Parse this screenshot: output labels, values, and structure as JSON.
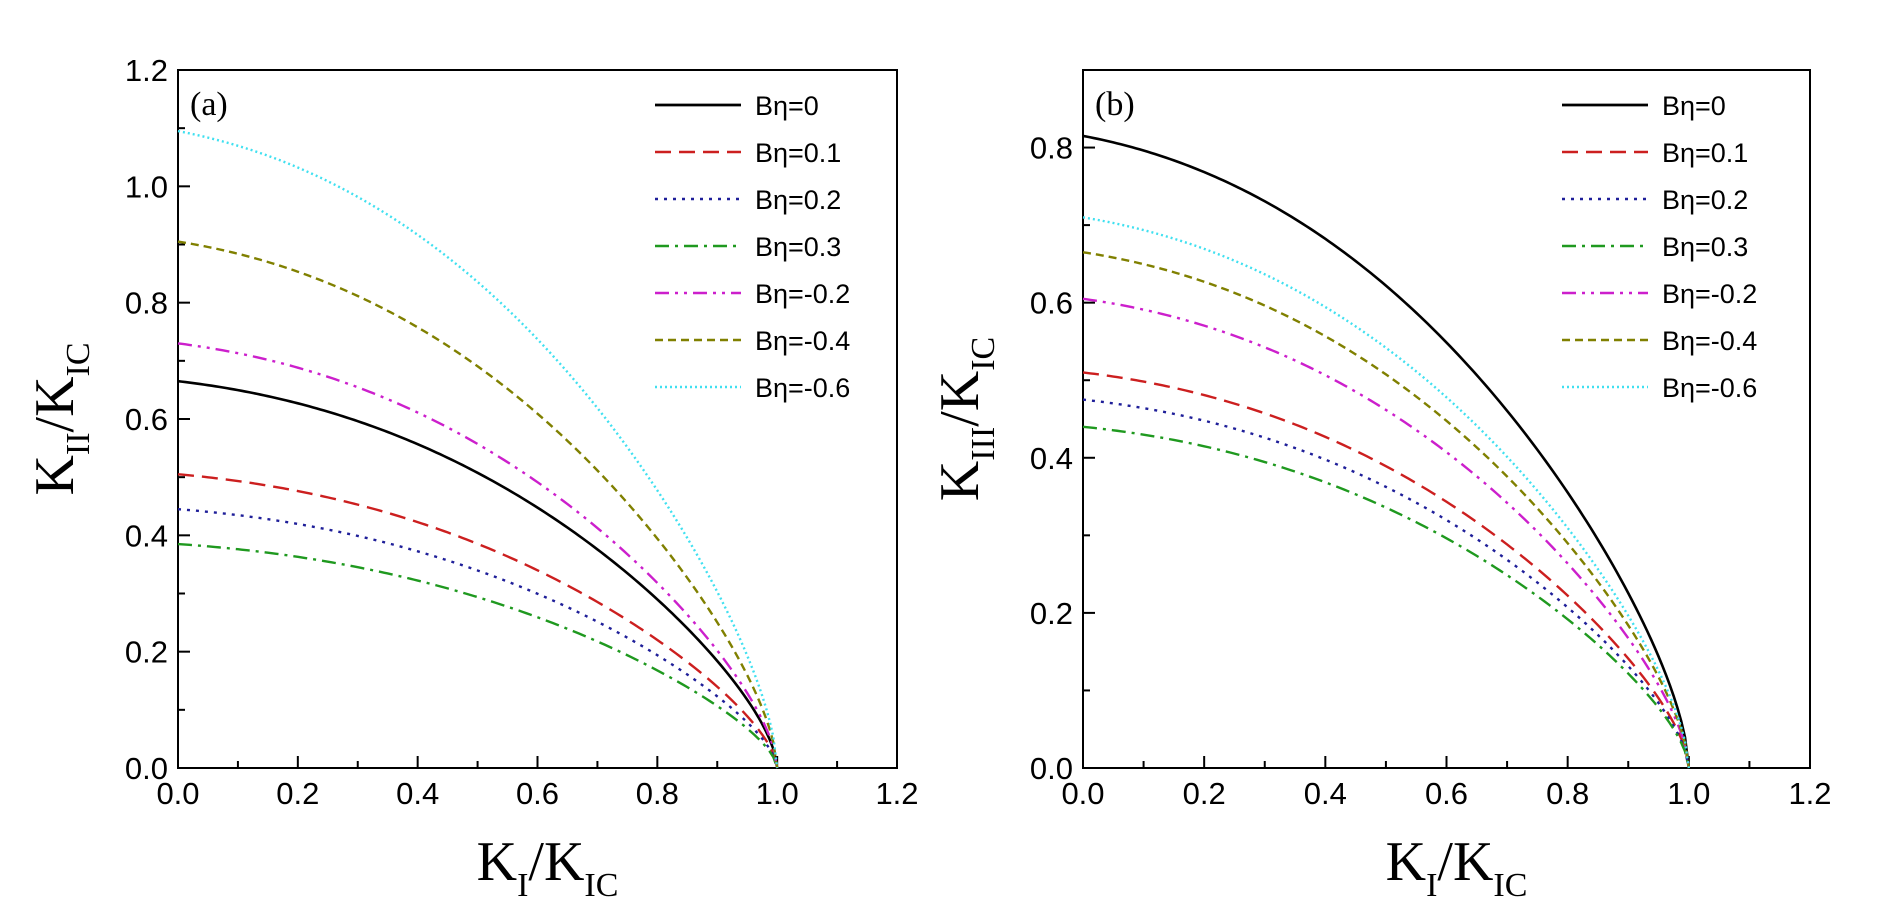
{
  "chart_data": [
    {
      "type": "line",
      "panel_label": "(a)",
      "xlabel": {
        "main": "K",
        "sub": "I",
        "sep": "/K",
        "sub2": "IC"
      },
      "ylabel": {
        "main": "K",
        "sub": "II",
        "sep": "/K",
        "sub2": "IC"
      },
      "xlim": [
        0,
        1.2
      ],
      "ylim": [
        0,
        1.2
      ],
      "x_ticks": [
        "0.0",
        "0.2",
        "0.4",
        "0.6",
        "0.8",
        "1.0",
        "1.2"
      ],
      "y_ticks": [
        "0.0",
        "0.2",
        "0.4",
        "0.6",
        "0.8",
        "1.0",
        "1.2"
      ],
      "legend_position": "top-right",
      "series": [
        {
          "name": "Bη=0",
          "color": "#000000",
          "style": "solid",
          "y0": 0.665
        },
        {
          "name": "Bη=0.1",
          "color": "#cc1f1f",
          "style": "dash",
          "y0": 0.505
        },
        {
          "name": "Bη=0.2",
          "color": "#1f1f99",
          "style": "dot",
          "y0": 0.445
        },
        {
          "name": "Bη=0.3",
          "color": "#1f991f",
          "style": "dashdot",
          "y0": 0.385
        },
        {
          "name": "Bη=-0.2",
          "color": "#cc1fcc",
          "style": "dashdotdot",
          "y0": 0.73
        },
        {
          "name": "Bη=-0.4",
          "color": "#808000",
          "style": "shortdash",
          "y0": 0.905
        },
        {
          "name": "Bη=-0.6",
          "color": "#40e0f0",
          "style": "shortdot",
          "y0": 1.095
        }
      ]
    },
    {
      "type": "line",
      "panel_label": "(b)",
      "xlabel": {
        "main": "K",
        "sub": "I",
        "sep": "/K",
        "sub2": "IC"
      },
      "ylabel": {
        "main": "K",
        "sub": "III",
        "sep": "/K",
        "sub2": "IC"
      },
      "xlim": [
        0,
        1.2
      ],
      "ylim": [
        0,
        0.9
      ],
      "x_ticks": [
        "0.0",
        "0.2",
        "0.4",
        "0.6",
        "0.8",
        "1.0",
        "1.2"
      ],
      "y_ticks": [
        "0.0",
        "0.2",
        "0.4",
        "0.6",
        "0.8"
      ],
      "legend_position": "top-right",
      "series": [
        {
          "name": "Bη=0",
          "color": "#000000",
          "style": "solid",
          "y0": 0.815
        },
        {
          "name": "Bη=0.1",
          "color": "#cc1f1f",
          "style": "dash",
          "y0": 0.51
        },
        {
          "name": "Bη=0.2",
          "color": "#1f1f99",
          "style": "dot",
          "y0": 0.475
        },
        {
          "name": "Bη=0.3",
          "color": "#1f991f",
          "style": "dashdot",
          "y0": 0.44
        },
        {
          "name": "Bη=-0.2",
          "color": "#cc1fcc",
          "style": "dashdotdot",
          "y0": 0.605
        },
        {
          "name": "Bη=-0.4",
          "color": "#808000",
          "style": "shortdash",
          "y0": 0.665
        },
        {
          "name": "Bη=-0.6",
          "color": "#40e0f0",
          "style": "shortdot",
          "y0": 0.71
        }
      ]
    }
  ]
}
